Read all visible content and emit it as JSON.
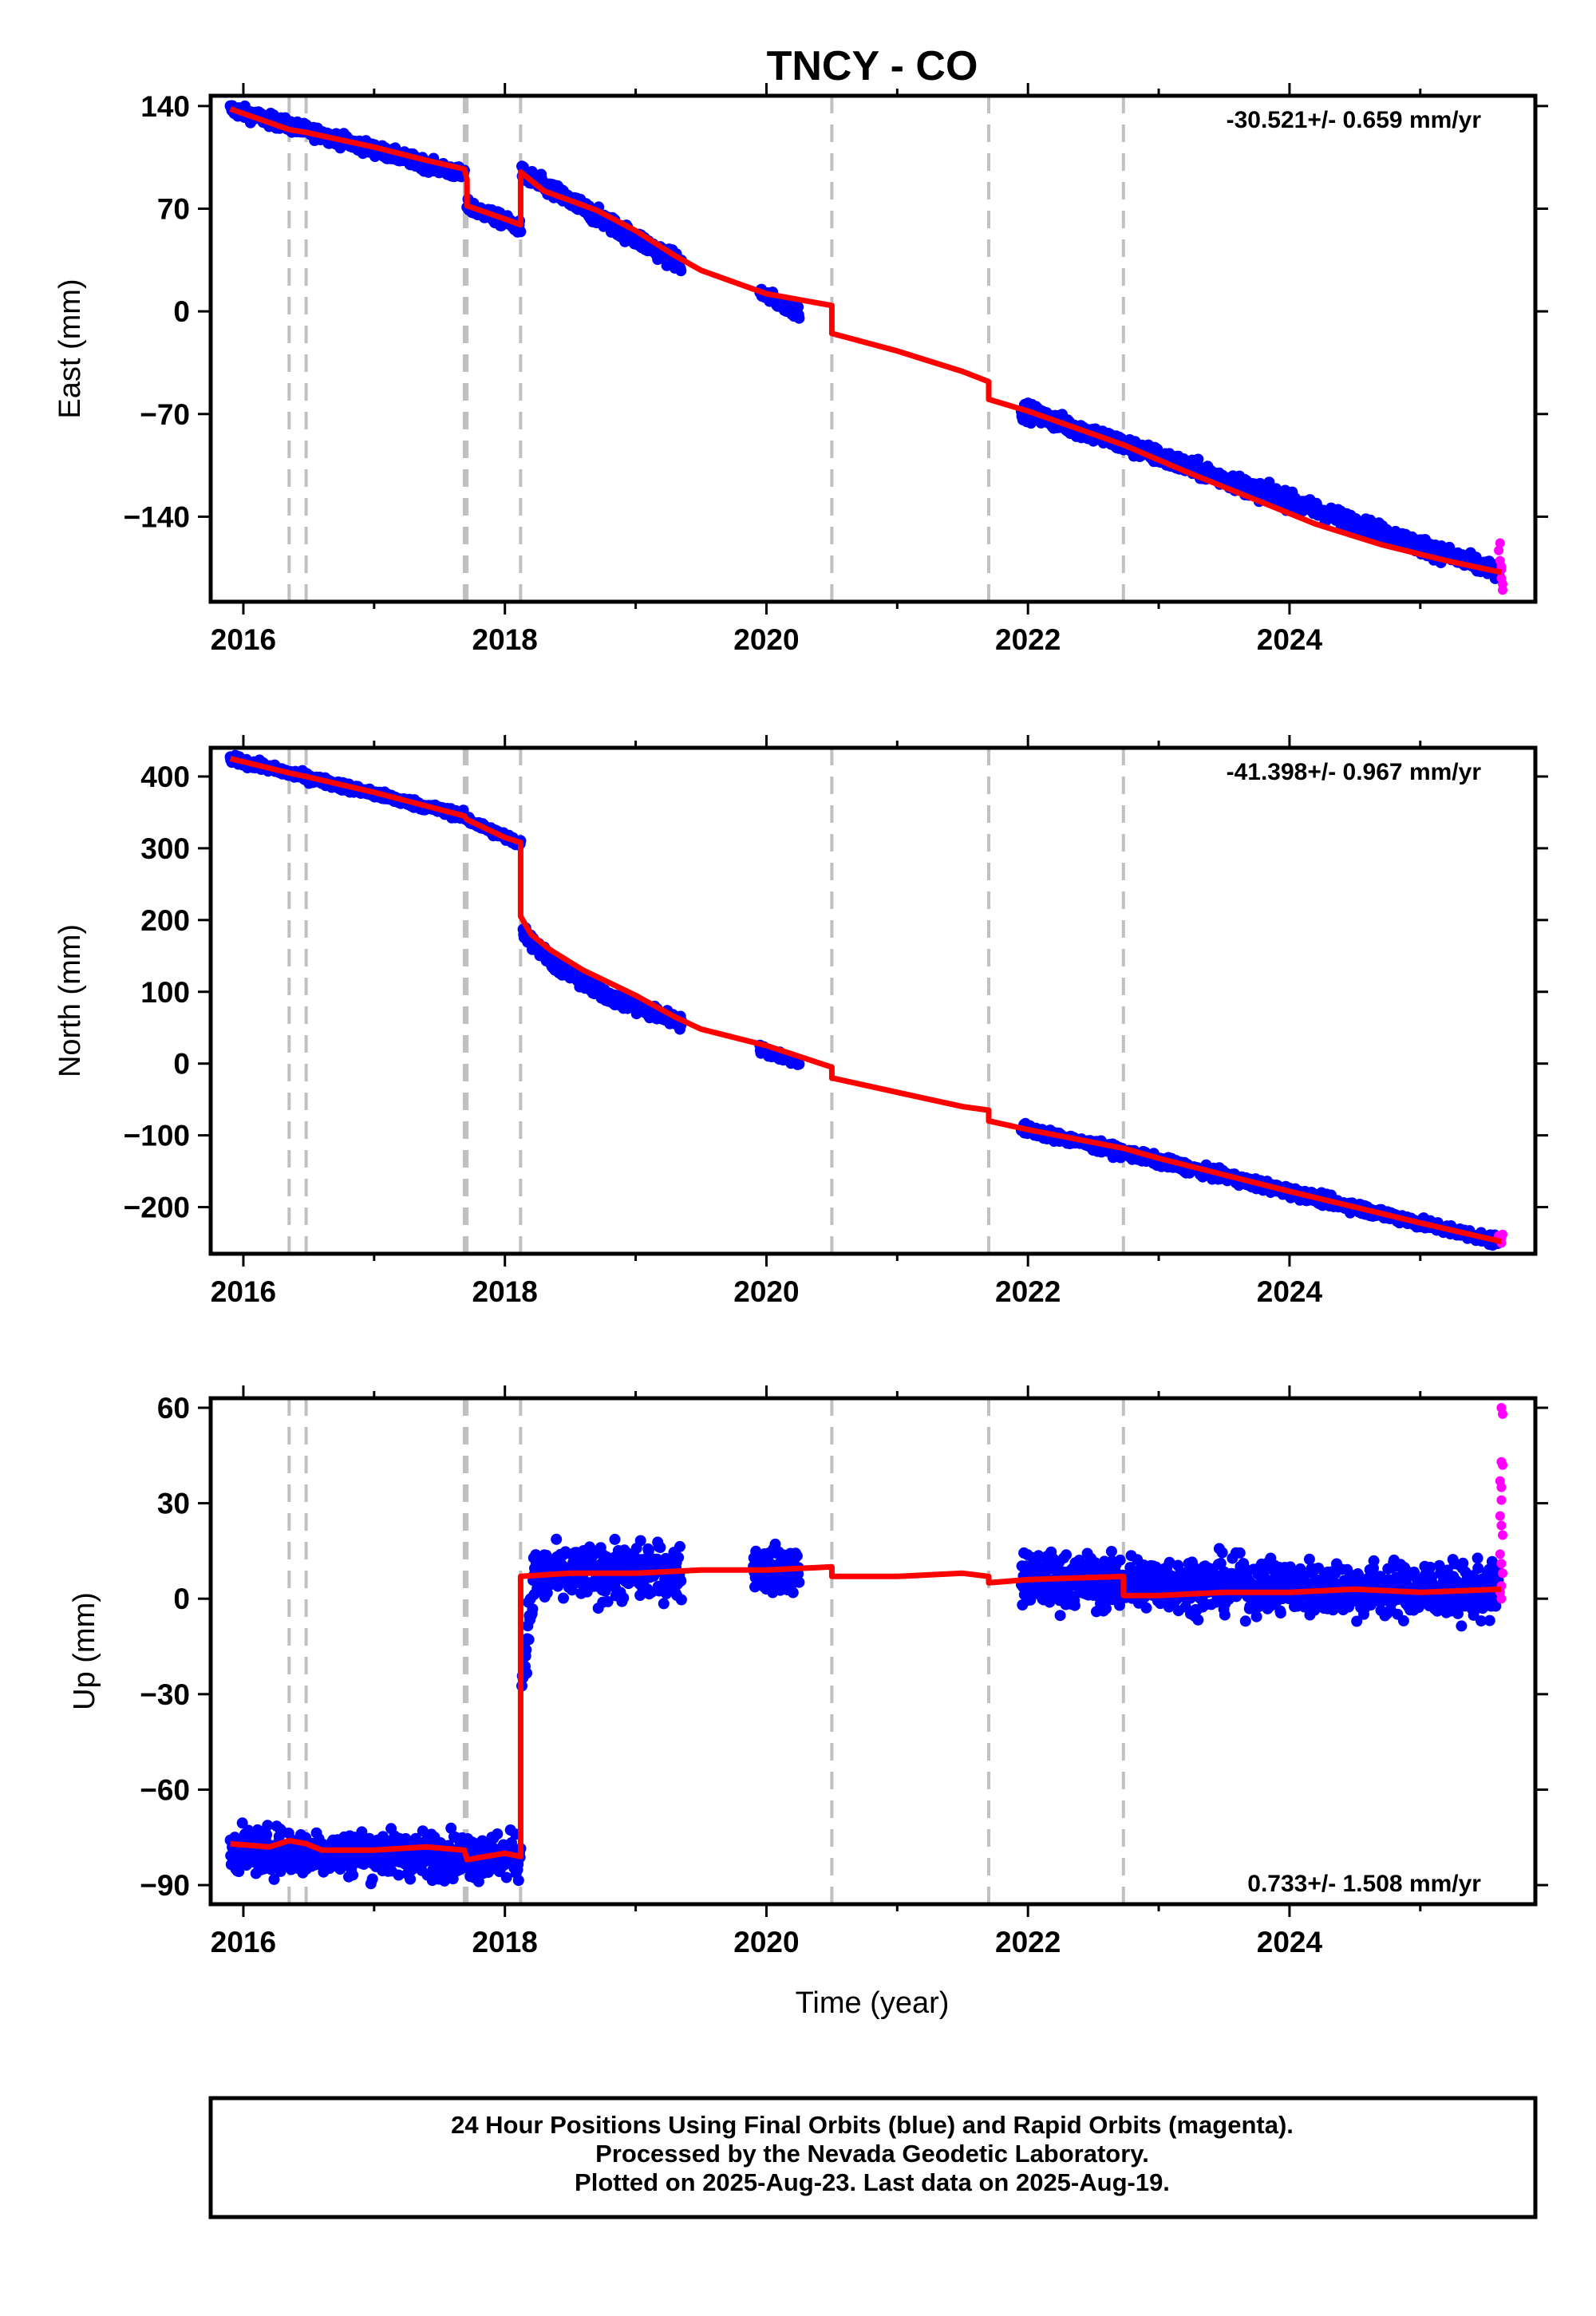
{
  "title": "TNCY - CO",
  "xlabel": "Time (year)",
  "footer": {
    "line1": "24 Hour Positions Using Final Orbits (blue) and Rapid Orbits (magenta).",
    "line2": "Processed by the Nevada Geodetic Laboratory.",
    "line3": "Plotted on 2025-Aug-23. Last data on 2025-Aug-19."
  },
  "colors": {
    "final": "#0000ff",
    "rapid": "#ff00ff",
    "model": "#ff0000",
    "event": "#c0c0c0"
  },
  "chart_data": [
    {
      "type": "scatter",
      "name": "East",
      "ylabel": "East (mm)",
      "rate_text": "-30.521+/- 0.659 mm/yr",
      "xlim": [
        2015.75,
        2025.88
      ],
      "ylim": [
        -198,
        147
      ],
      "xticks": [
        2016,
        2018,
        2020,
        2022,
        2024
      ],
      "yticks": [
        140,
        70,
        0,
        -70,
        -140
      ],
      "ytick_labels": [
        "140",
        "70",
        "0",
        "−70",
        "−140"
      ],
      "event_lines": [
        2016.35,
        2016.48,
        2017.69,
        2017.71,
        2018.12,
        2020.5,
        2021.7,
        2022.73
      ],
      "model": [
        [
          2015.9,
          138
        ],
        [
          2016.35,
          124
        ],
        [
          2016.48,
          122
        ],
        [
          2017.0,
          112
        ],
        [
          2017.4,
          103
        ],
        [
          2017.69,
          97
        ],
        [
          2017.71,
          90
        ],
        [
          2017.71,
          72
        ],
        [
          2018.0,
          63
        ],
        [
          2018.12,
          59
        ],
        [
          2018.12,
          95
        ],
        [
          2018.3,
          82
        ],
        [
          2018.7,
          69
        ],
        [
          2019.0,
          55
        ],
        [
          2019.3,
          38
        ],
        [
          2019.5,
          28
        ],
        [
          2020.0,
          12
        ],
        [
          2020.5,
          4
        ],
        [
          2020.5,
          -15
        ],
        [
          2021.0,
          -27
        ],
        [
          2021.5,
          -41
        ],
        [
          2021.7,
          -48
        ],
        [
          2021.7,
          -60
        ],
        [
          2022.0,
          -68
        ],
        [
          2022.73,
          -91
        ],
        [
          2023.2,
          -109
        ],
        [
          2023.7,
          -127
        ],
        [
          2024.2,
          -145
        ],
        [
          2024.7,
          -159
        ],
        [
          2025.2,
          -170
        ],
        [
          2025.62,
          -178
        ]
      ],
      "final_segments": [
        {
          "x_start": 2015.9,
          "x_end": 2017.69,
          "y_start": 138,
          "y_end": 93,
          "scatter": 3
        },
        {
          "x_start": 2017.71,
          "x_end": 2018.12,
          "y_start": 72,
          "y_end": 57,
          "scatter": 3
        },
        {
          "x_start": 2018.13,
          "x_end": 2019.35,
          "y_start": 94,
          "y_end": 32,
          "scatter": 4
        },
        {
          "x_start": 2019.95,
          "x_end": 2020.25,
          "y_start": 13,
          "y_end": -1,
          "scatter": 3
        },
        {
          "x_start": 2021.95,
          "x_end": 2025.6,
          "y_start": -67,
          "y_end": -178,
          "scatter": 4
        }
      ],
      "rapid_points": [
        [
          2025.6,
          -163
        ],
        [
          2025.61,
          -170
        ],
        [
          2025.62,
          -176
        ],
        [
          2025.62,
          -182
        ],
        [
          2025.63,
          -186
        ],
        [
          2025.63,
          -190
        ],
        [
          2025.61,
          -158
        ],
        [
          2025.62,
          -174
        ]
      ]
    },
    {
      "type": "scatter",
      "name": "North",
      "ylabel": "North (mm)",
      "rate_text": "-41.398+/- 0.967 mm/yr",
      "xlim": [
        2015.75,
        2025.88
      ],
      "ylim": [
        -265,
        440
      ],
      "xticks": [
        2016,
        2018,
        2020,
        2022,
        2024
      ],
      "yticks": [
        400,
        300,
        200,
        100,
        0,
        -100,
        -200
      ],
      "ytick_labels": [
        "400",
        "300",
        "200",
        "100",
        "0",
        "−100",
        "−200"
      ],
      "event_lines": [
        2016.35,
        2016.48,
        2017.69,
        2017.71,
        2018.12,
        2020.5,
        2021.7,
        2022.73
      ],
      "model": [
        [
          2015.9,
          425
        ],
        [
          2016.35,
          405
        ],
        [
          2016.48,
          400
        ],
        [
          2017.0,
          378
        ],
        [
          2017.69,
          345
        ],
        [
          2017.71,
          340
        ],
        [
          2018.0,
          315
        ],
        [
          2018.12,
          308
        ],
        [
          2018.12,
          205
        ],
        [
          2018.2,
          180
        ],
        [
          2018.35,
          158
        ],
        [
          2018.6,
          130
        ],
        [
          2019.0,
          95
        ],
        [
          2019.3,
          65
        ],
        [
          2019.5,
          48
        ],
        [
          2020.0,
          25
        ],
        [
          2020.5,
          -5
        ],
        [
          2020.5,
          -20
        ],
        [
          2021.0,
          -40
        ],
        [
          2021.5,
          -60
        ],
        [
          2021.7,
          -65
        ],
        [
          2021.7,
          -80
        ],
        [
          2022.0,
          -92
        ],
        [
          2022.73,
          -118
        ],
        [
          2023.0,
          -132
        ],
        [
          2023.5,
          -155
        ],
        [
          2024.0,
          -178
        ],
        [
          2024.5,
          -200
        ],
        [
          2025.0,
          -222
        ],
        [
          2025.62,
          -248
        ]
      ],
      "final_segments": [
        {
          "x_start": 2015.9,
          "x_end": 2017.69,
          "y_start": 425,
          "y_end": 345,
          "scatter": 4
        },
        {
          "x_start": 2017.71,
          "x_end": 2018.12,
          "y_start": 340,
          "y_end": 306,
          "scatter": 4
        },
        {
          "x_start": 2018.14,
          "x_end": 2019.35,
          "y_start": 185,
          "y_end": 55,
          "scatter": 7,
          "curve": true
        },
        {
          "x_start": 2019.95,
          "x_end": 2020.25,
          "y_start": 20,
          "y_end": 2,
          "scatter": 4
        },
        {
          "x_start": 2021.95,
          "x_end": 2025.6,
          "y_start": -90,
          "y_end": -248,
          "scatter": 5
        }
      ],
      "rapid_points": [
        [
          2025.6,
          -240
        ],
        [
          2025.61,
          -245
        ],
        [
          2025.62,
          -250
        ],
        [
          2025.63,
          -238
        ],
        [
          2025.62,
          -243
        ]
      ]
    },
    {
      "type": "scatter",
      "name": "Up",
      "ylabel": "Up (mm)",
      "rate_text": "0.733+/- 1.508 mm/yr",
      "xlim": [
        2015.75,
        2025.88
      ],
      "ylim": [
        -96,
        63
      ],
      "xticks": [
        2016,
        2018,
        2020,
        2022,
        2024
      ],
      "yticks": [
        60,
        30,
        0,
        -30,
        -60,
        -90
      ],
      "ytick_labels": [
        "60",
        "30",
        "0",
        "−30",
        "−60",
        "−90"
      ],
      "event_lines": [
        2016.35,
        2016.48,
        2017.69,
        2017.71,
        2018.12,
        2020.5,
        2021.7,
        2022.73
      ],
      "model": [
        [
          2015.9,
          -77
        ],
        [
          2016.2,
          -78
        ],
        [
          2016.35,
          -76
        ],
        [
          2016.48,
          -77
        ],
        [
          2016.6,
          -79
        ],
        [
          2017.0,
          -79
        ],
        [
          2017.4,
          -78
        ],
        [
          2017.69,
          -79
        ],
        [
          2017.71,
          -82
        ],
        [
          2018.0,
          -80
        ],
        [
          2018.12,
          -81
        ],
        [
          2018.12,
          7
        ],
        [
          2018.5,
          8
        ],
        [
          2019.0,
          8
        ],
        [
          2019.5,
          9
        ],
        [
          2020.0,
          9
        ],
        [
          2020.5,
          10
        ],
        [
          2020.5,
          7
        ],
        [
          2021.0,
          7
        ],
        [
          2021.5,
          8
        ],
        [
          2021.7,
          7
        ],
        [
          2021.7,
          5
        ],
        [
          2022.0,
          6
        ],
        [
          2022.73,
          7
        ],
        [
          2022.73,
          1
        ],
        [
          2023.0,
          1
        ],
        [
          2023.5,
          2
        ],
        [
          2024.0,
          2
        ],
        [
          2024.5,
          3
        ],
        [
          2025.0,
          2
        ],
        [
          2025.62,
          3
        ]
      ],
      "final_segments": [
        {
          "x_start": 2015.9,
          "x_end": 2018.12,
          "y_start": -79,
          "y_end": -81,
          "scatter": 5
        },
        {
          "x_start": 2018.13,
          "x_end": 2018.22,
          "y_start": -25,
          "y_end": 3,
          "scatter": 6
        },
        {
          "x_start": 2018.22,
          "x_end": 2019.35,
          "y_start": 7,
          "y_end": 9,
          "scatter": 6
        },
        {
          "x_start": 2019.9,
          "x_end": 2020.25,
          "y_start": 9,
          "y_end": 9,
          "scatter": 5
        },
        {
          "x_start": 2021.95,
          "x_end": 2025.6,
          "y_start": 6,
          "y_end": 2,
          "scatter": 6
        }
      ],
      "rapid_points": [
        [
          2025.62,
          60
        ],
        [
          2025.63,
          58
        ],
        [
          2025.62,
          43
        ],
        [
          2025.63,
          42
        ],
        [
          2025.61,
          37
        ],
        [
          2025.62,
          35
        ],
        [
          2025.62,
          31
        ],
        [
          2025.61,
          26
        ],
        [
          2025.62,
          23
        ],
        [
          2025.63,
          20
        ],
        [
          2025.61,
          14
        ],
        [
          2025.62,
          11
        ],
        [
          2025.63,
          8
        ],
        [
          2025.62,
          4
        ],
        [
          2025.61,
          2
        ],
        [
          2025.62,
          0
        ]
      ]
    }
  ]
}
